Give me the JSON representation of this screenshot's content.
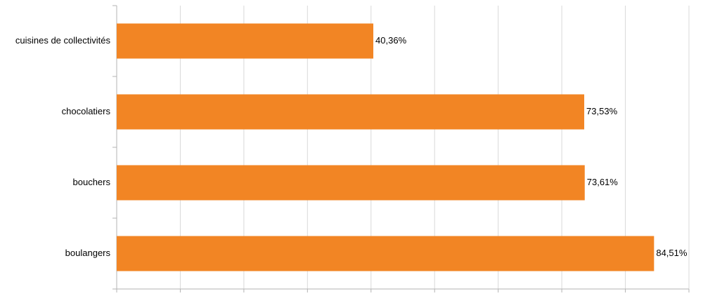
{
  "chart_data": {
    "type": "hbar",
    "categories": [
      "cuisines de collectivités",
      "chocolatiers",
      "bouchers",
      "boulangers"
    ],
    "values": [
      40.36,
      73.53,
      73.61,
      84.51
    ],
    "value_labels": [
      "40,36%",
      "73,53%",
      "73,61%",
      "84,51%"
    ],
    "color": "#f28524",
    "xlim": [
      0,
      90
    ],
    "xticks": [
      0,
      10,
      20,
      30,
      40,
      50,
      60,
      70,
      80,
      90
    ],
    "grid": true
  }
}
